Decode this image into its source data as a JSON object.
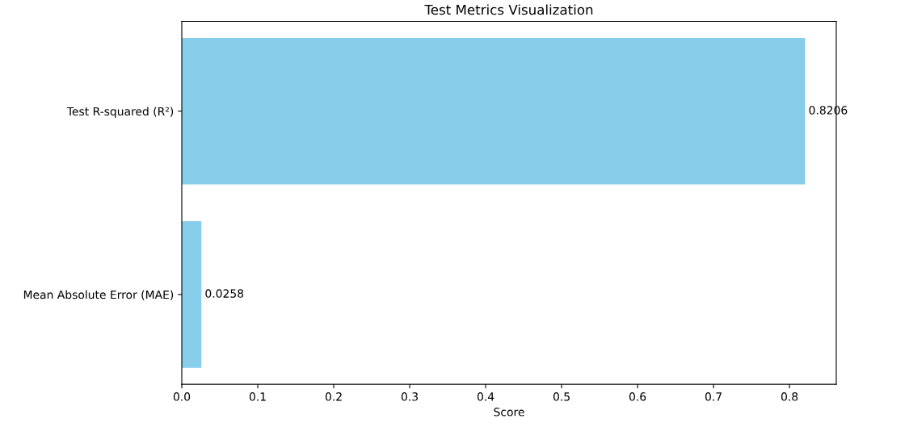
{
  "chart_data": {
    "type": "bar",
    "orientation": "horizontal",
    "title": "Test Metrics Visualization",
    "xlabel": "Score",
    "categories": [
      "Test R-squared (R²)",
      "Mean Absolute Error (MAE)"
    ],
    "values": [
      0.8206,
      0.0258
    ],
    "color": "#87ceeb",
    "xlim": [
      0,
      0.8616
    ],
    "xticks": [
      {
        "value": 0,
        "label": "0.0"
      },
      0.1,
      0.2,
      0.3,
      0.4,
      0.5,
      0.6,
      0.7,
      0.8
    ],
    "data_labels": true,
    "grid": false,
    "legend": false
  }
}
